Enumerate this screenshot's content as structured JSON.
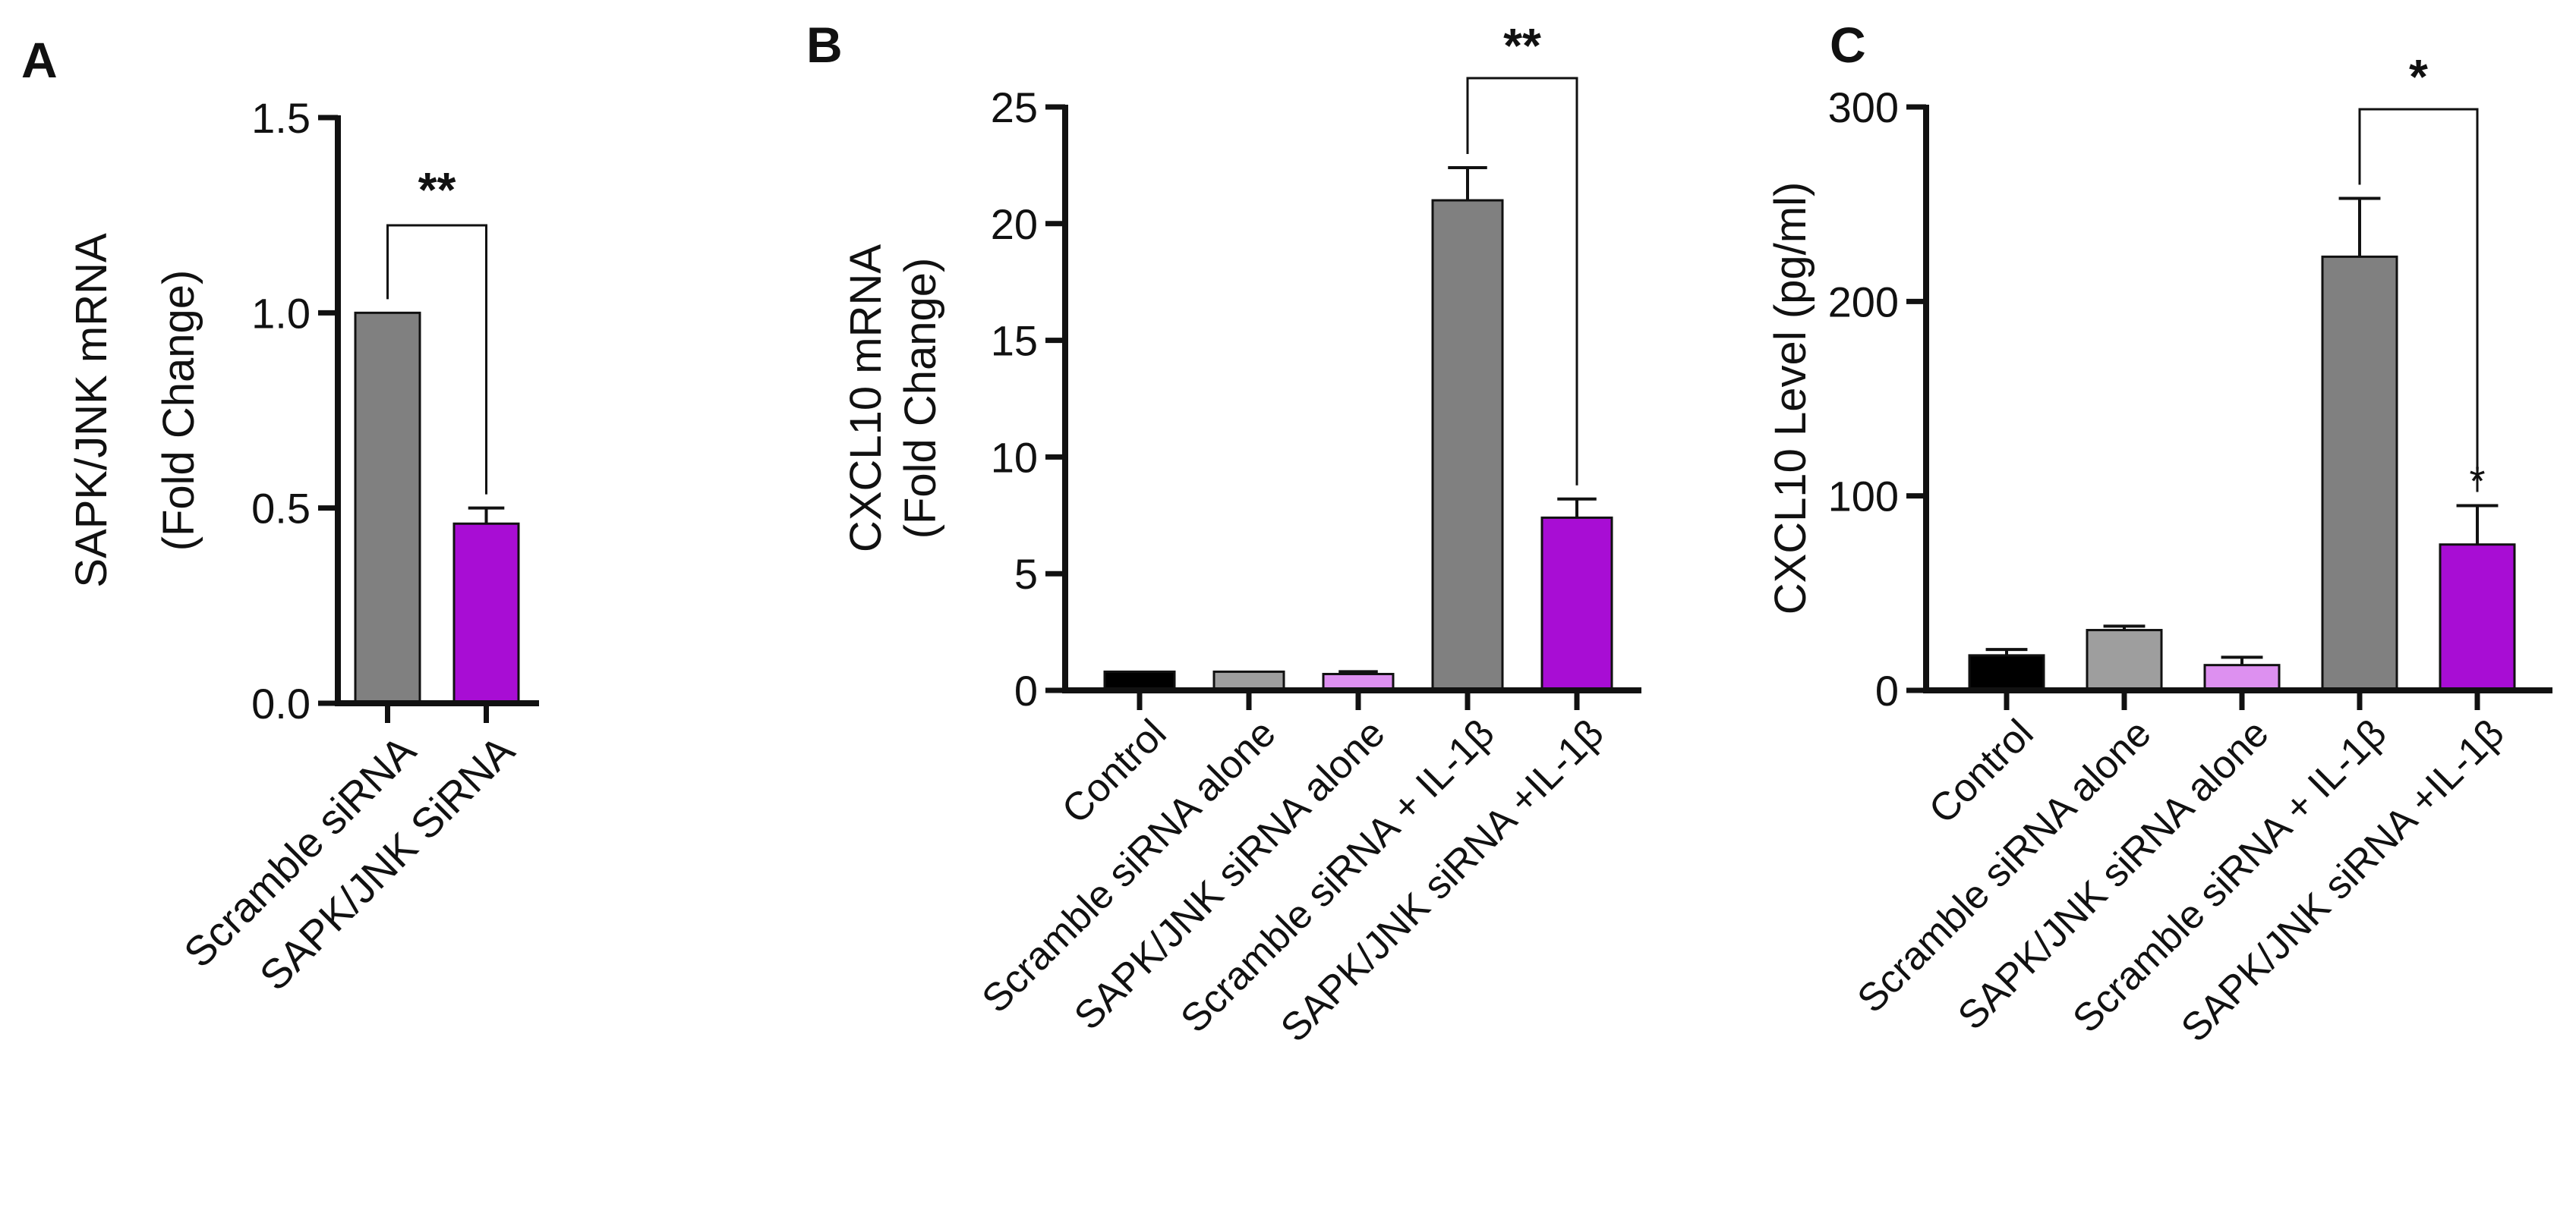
{
  "figure": {
    "panels": [
      "A",
      "B",
      "C"
    ]
  },
  "chart_data": [
    {
      "panel": "A",
      "type": "bar",
      "title": "",
      "xlabel": "",
      "ylabel": [
        "SAPK/JNK mRNA",
        "(Fold Change)"
      ],
      "ylim": [
        0,
        1.5
      ],
      "yticks": [
        "0.0",
        "0.5",
        "1.0",
        "1.5"
      ],
      "ytick_values": [
        0,
        0.5,
        1.0,
        1.5
      ],
      "categories": [
        "Scramble siRNA",
        "SAPK/JNK SiRNA"
      ],
      "values": [
        1.0,
        0.46
      ],
      "errors": [
        0,
        0.04
      ],
      "colors": [
        "#808080",
        "#a80dd4"
      ],
      "significance": [
        {
          "from": 0,
          "to": 1,
          "label": "**"
        }
      ]
    },
    {
      "panel": "B",
      "type": "bar",
      "title": "",
      "xlabel": "",
      "ylabel": [
        "CXCL10 mRNA",
        "(Fold Change)"
      ],
      "ylim": [
        0,
        25
      ],
      "yticks": [
        "0",
        "5",
        "10",
        "15",
        "20",
        "25"
      ],
      "ytick_values": [
        0,
        5,
        10,
        15,
        20,
        25
      ],
      "categories": [
        "Control",
        "Scramble siRNA alone",
        "SAPK/JNK siRNA alone",
        "Scramble siRNA + IL-1β",
        "SAPK/JNK siRNA +IL-1β"
      ],
      "values": [
        0.8,
        0.8,
        0.7,
        21.0,
        7.4
      ],
      "errors": [
        0,
        0,
        0.1,
        1.4,
        0.8
      ],
      "colors": [
        "#000000",
        "#9e9e9e",
        "#dd90f0",
        "#808080",
        "#a80dd4"
      ],
      "significance": [
        {
          "from": 3,
          "to": 4,
          "label": "**"
        }
      ],
      "bar_marks": []
    },
    {
      "panel": "C",
      "type": "bar",
      "title": "",
      "xlabel": "",
      "ylabel": [
        "CXCL10 Level (pg/ml)"
      ],
      "ylim": [
        0,
        300
      ],
      "yticks": [
        "0",
        "100",
        "200",
        "300"
      ],
      "ytick_values": [
        0,
        100,
        200,
        300
      ],
      "categories": [
        "Control",
        "Scramble siRNA alone",
        "SAPK/JNK siRNA alone",
        "Scramble siRNA + IL-1β",
        "SAPK/JNK siRNA +IL-1β"
      ],
      "values": [
        18,
        31,
        13,
        223,
        75
      ],
      "errors": [
        3,
        2,
        4,
        30,
        20
      ],
      "colors": [
        "#000000",
        "#9e9e9e",
        "#dd90f0",
        "#808080",
        "#a80dd4"
      ],
      "significance": [
        {
          "from": 3,
          "to": 4,
          "label": "*"
        }
      ],
      "bar_marks": [
        {
          "index": 4,
          "label": "*"
        }
      ]
    }
  ]
}
